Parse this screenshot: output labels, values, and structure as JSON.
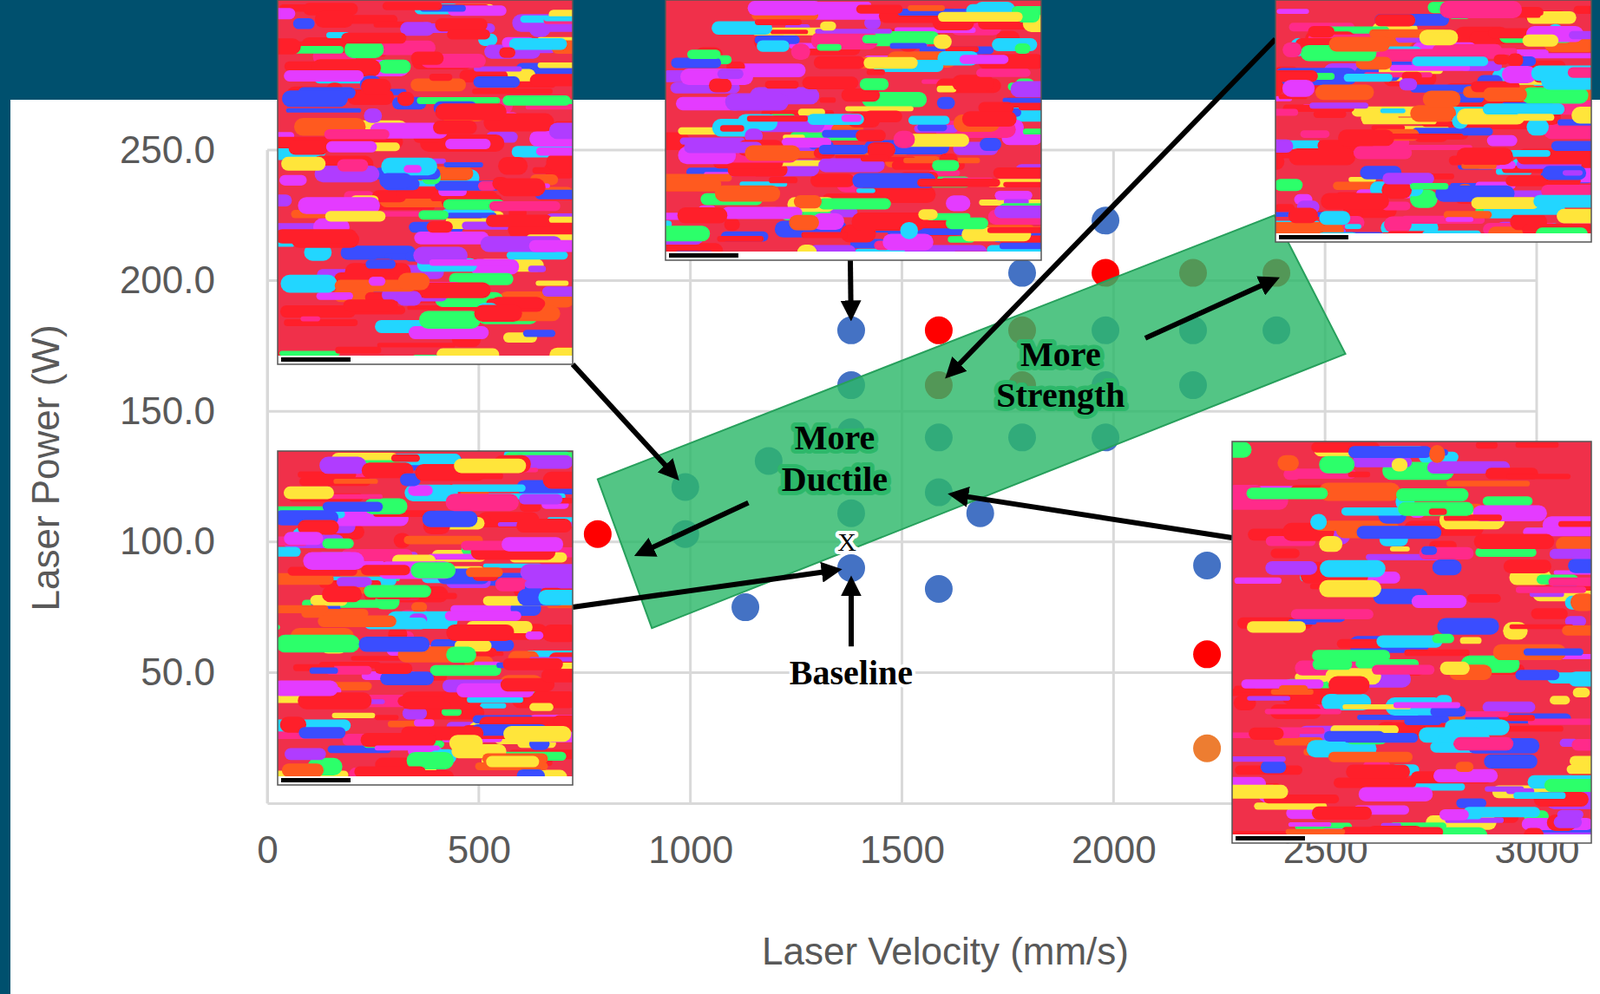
{
  "chart_data": {
    "type": "scatter",
    "xlabel": "Laser Velocity (mm/s)",
    "ylabel": "Laser Power (W)",
    "xlim": [
      0,
      3000
    ],
    "ylim": [
      0,
      250
    ],
    "xticks": [
      0,
      500,
      1000,
      1500,
      2000,
      2500,
      3000
    ],
    "yticks": [
      {
        "value": 50,
        "label": "50.0"
      },
      {
        "value": 100,
        "label": "100.0"
      },
      {
        "value": 150,
        "label": "150.0"
      },
      {
        "value": 200,
        "label": "200.0"
      },
      {
        "value": 250,
        "label": "250.0"
      }
    ],
    "grid": true,
    "series": [
      {
        "color": "#4472c4",
        "marker": "circle",
        "x": [
          1380,
          1380,
          1380,
          1380,
          1380,
          1587,
          1587,
          1587,
          1685,
          1185,
          988,
          988,
          1130,
          1784,
          1784,
          1981,
          1981,
          1981,
          1981,
          2188,
          2188,
          2385,
          2221
        ],
        "values": [
          181,
          160,
          142,
          111,
          90,
          140,
          119,
          82,
          111,
          131,
          121,
          103,
          75,
          203,
          140,
          223,
          181,
          160,
          140,
          181,
          160,
          181,
          91
        ]
      },
      {
        "color": "#ff0000",
        "marker": "circle",
        "x": [
          1587,
          1587,
          781,
          1784,
          1784,
          1981,
          2188,
          2385,
          2221
        ],
        "values": [
          181,
          160,
          103,
          181,
          160,
          203,
          203,
          203,
          57
        ]
      },
      {
        "color": "#ed7d31",
        "marker": "circle",
        "x": [
          2221
        ],
        "values": [
          21
        ]
      }
    ],
    "highlight": {
      "color": "#2db86a",
      "polygon": [
        [
          781,
          124
        ],
        [
          2380,
          225
        ],
        [
          2548,
          172
        ],
        [
          909,
          67
        ]
      ]
    },
    "annotations": [
      {
        "text": "More Ductile",
        "x": 1341,
        "y": 132,
        "arrow_from": [
          1137,
          115
        ],
        "arrow_to": [
          885,
          96
        ]
      },
      {
        "text": "More Strength",
        "x": 1875,
        "y": 164,
        "arrow_from": [
          2075,
          178
        ],
        "arrow_to": [
          2375,
          200
        ]
      },
      {
        "text": "Baseline",
        "x": 1380,
        "y": 50,
        "arrow_from": [
          1380,
          60
        ],
        "arrow_to": [
          1380,
          84
        ]
      },
      {
        "text": "X",
        "x": 1370,
        "y": 100
      }
    ],
    "insets": [
      {
        "target": [
          988,
          121
        ]
      },
      {
        "target": [
          1380,
          181
        ]
      },
      {
        "target": [
          1587,
          160
        ]
      },
      {
        "target": [
          1380,
          90
        ]
      },
      {
        "target": [
          1587,
          119
        ]
      }
    ]
  }
}
